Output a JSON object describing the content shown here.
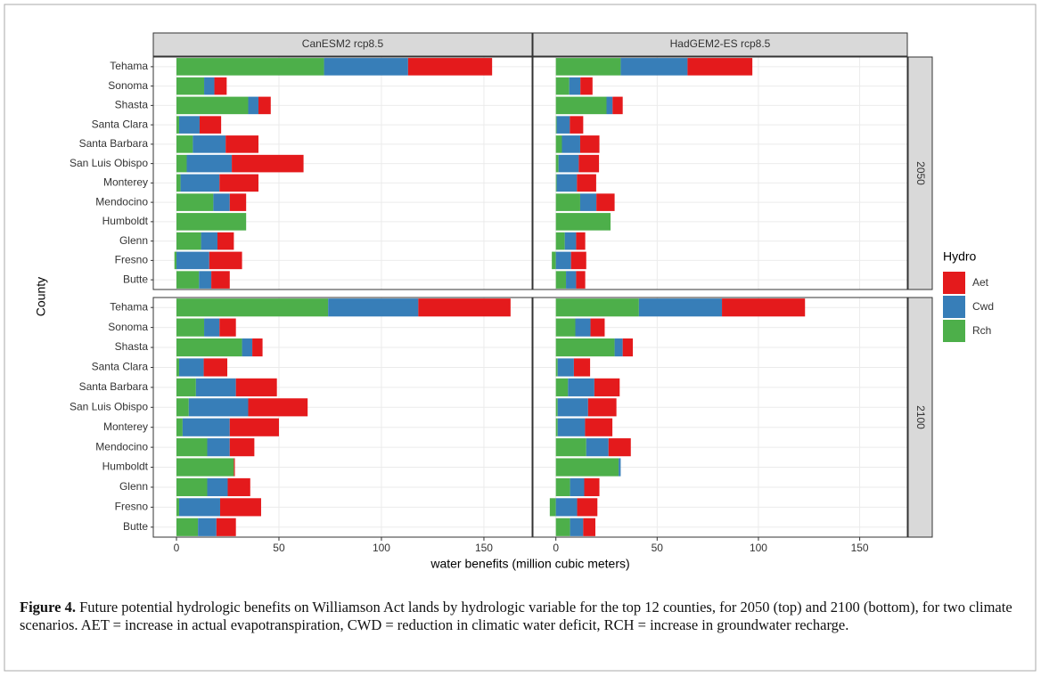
{
  "chart_data": {
    "type": "bar",
    "orientation": "horizontal",
    "stacked": true,
    "x_label": "water benefits (million cubic meters)",
    "y_label": "County",
    "legend_title": "Hydro",
    "categories": [
      "Tehama",
      "Sonoma",
      "Shasta",
      "Santa Clara",
      "Santa Barbara",
      "San Luis Obispo",
      "Monterey",
      "Mendocino",
      "Humboldt",
      "Glenn",
      "Fresno",
      "Butte"
    ],
    "series": [
      {
        "name": "Aet",
        "color": "#e41a1c"
      },
      {
        "name": "Cwd",
        "color": "#377eb8"
      },
      {
        "name": "Rch",
        "color": "#4daf4a"
      }
    ],
    "xlim": [
      -11.3,
      173.5
    ],
    "xticks": [
      0,
      50,
      100,
      150
    ],
    "grid": true,
    "columns": [
      "CanESM2 rcp8.5",
      "HadGEM2-ES rcp8.5"
    ],
    "rows": [
      "2050",
      "2100"
    ],
    "panels": [
      {
        "values": [
          [
            41,
            6,
            6,
            10.5,
            16,
            35,
            19,
            8,
            0,
            8,
            16,
            9
          ],
          [
            41,
            5,
            5,
            10,
            16,
            22,
            19,
            8,
            0,
            8,
            16,
            6
          ],
          [
            72,
            13.5,
            35,
            1.3,
            8,
            5,
            2,
            18,
            34,
            12,
            -1,
            11
          ]
        ]
      },
      {
        "values": [
          [
            32,
            6,
            5,
            6.6,
            9.5,
            10,
            9.5,
            9,
            0,
            4.5,
            7.5,
            4.5
          ],
          [
            33,
            5.5,
            3,
            6.5,
            9,
            10,
            10,
            8,
            0,
            5.6,
            7.5,
            5
          ],
          [
            32,
            6.6,
            25,
            0.4,
            3,
            1.3,
            0.4,
            12,
            27,
            4.4,
            -2,
            5
          ]
        ]
      },
      {
        "values": [
          [
            45,
            8,
            5,
            11.5,
            20,
            29,
            24,
            12,
            0.5,
            11,
            20,
            9.5
          ],
          [
            44,
            7.5,
            5,
            12,
            19.5,
            29,
            23,
            11,
            0,
            10,
            20,
            9
          ],
          [
            74,
            13.5,
            32,
            1.3,
            9.5,
            6,
            3,
            15,
            28,
            15,
            1.3,
            10.5
          ]
        ]
      },
      {
        "values": [
          [
            41,
            7,
            5,
            8,
            12.5,
            14,
            13.5,
            11,
            0,
            7.5,
            10,
            6
          ],
          [
            41,
            7.5,
            4,
            8,
            13,
            15,
            13.5,
            11,
            1,
            7,
            10.5,
            6.5
          ],
          [
            41,
            9.6,
            29,
            0.9,
            6,
            0.9,
            0.9,
            15,
            31,
            7,
            -3,
            7
          ]
        ]
      }
    ]
  },
  "caption": {
    "label": "Figure 4.",
    "text": "Future potential hydrologic benefits on Williamson Act lands by hydrologic variable for the top 12 counties, for 2050 (top) and 2100 (bottom), for two climate scenarios. AET = increase in actual evapotranspiration, CWD = reduction in climatic water deficit, RCH = increase in groundwater recharge."
  }
}
